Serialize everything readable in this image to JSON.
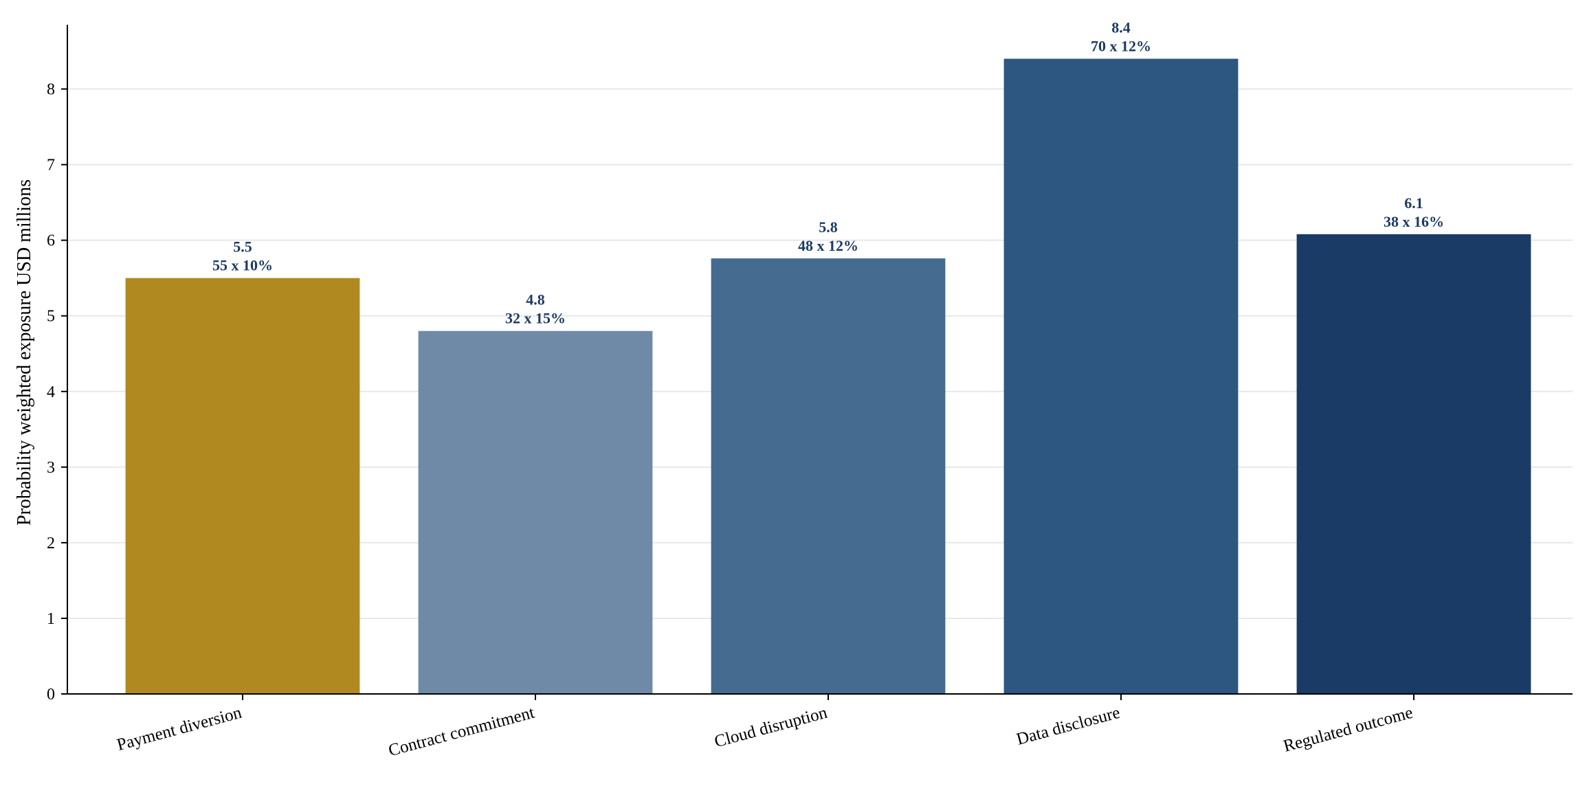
{
  "chart_data": {
    "type": "bar",
    "title": "",
    "xlabel": "",
    "ylabel": "Probability weighted exposure USD millions",
    "ylim": [
      0,
      8.85
    ],
    "yticks": [
      0,
      1,
      2,
      3,
      4,
      5,
      6,
      7,
      8
    ],
    "grid": "horizontal",
    "categories": [
      "Payment diversion",
      "Contract commitment",
      "Cloud disruption",
      "Data disclosure",
      "Regulated outcome"
    ],
    "values": [
      5.5,
      4.8,
      5.76,
      8.4,
      6.08
    ],
    "value_labels": [
      "5.5",
      "4.8",
      "5.8",
      "8.4",
      "6.1"
    ],
    "detail_labels": [
      "55 x 10%",
      "32 x 15%",
      "48 x 12%",
      "70 x 12%",
      "38 x 16%"
    ],
    "colors": [
      "#b08a21",
      "#6f8aa6",
      "#466b91",
      "#2d5680",
      "#1a3b66"
    ],
    "label_color": "#1d3a63",
    "grid_color": "#e8e8e8",
    "axis_color": "#000000"
  }
}
